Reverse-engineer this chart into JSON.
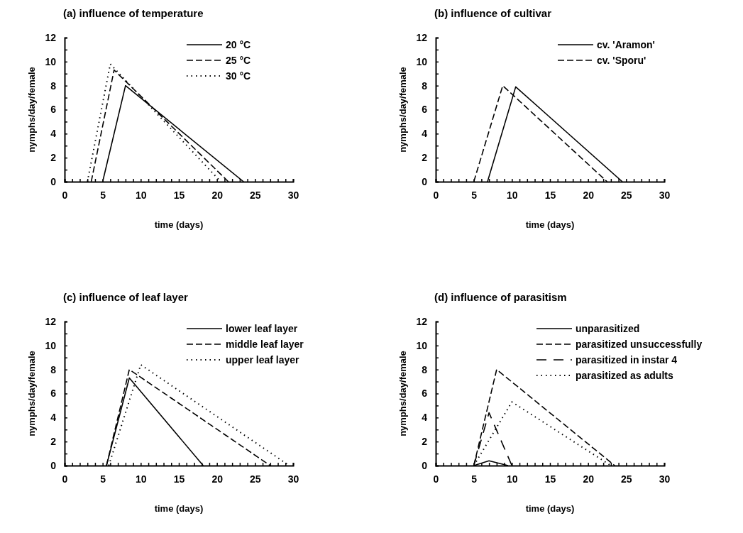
{
  "chart_data": [
    {
      "type": "line",
      "title": "(a) influence of temperature",
      "xlabel": "time (days)",
      "ylabel": "nymphs/day/female",
      "xlim": [
        0,
        30
      ],
      "ylim": [
        0,
        12
      ],
      "xticks": [
        0,
        {
          "value": 1,
          "label": null
        },
        {
          "value": 2,
          "label": null
        },
        {
          "value": 3,
          "label": null
        },
        {
          "value": 4,
          "label": null
        },
        5,
        {
          "value": 6,
          "label": null
        },
        {
          "value": 7,
          "label": null
        },
        {
          "value": 8,
          "label": null
        },
        {
          "value": 9,
          "label": null
        },
        10,
        {
          "value": 11,
          "label": null
        },
        {
          "value": 12,
          "label": null
        },
        {
          "value": 13,
          "label": null
        },
        {
          "value": 14,
          "label": null
        },
        15,
        {
          "value": 16,
          "label": null
        },
        {
          "value": 17,
          "label": null
        },
        {
          "value": 18,
          "label": null
        },
        {
          "value": 19,
          "label": null
        },
        20,
        {
          "value": 21,
          "label": null
        },
        {
          "value": 22,
          "label": null
        },
        {
          "value": 23,
          "label": null
        },
        {
          "value": 24,
          "label": null
        },
        25,
        {
          "value": 26,
          "label": null
        },
        {
          "value": 27,
          "label": null
        },
        {
          "value": 28,
          "label": null
        },
        {
          "value": 29,
          "label": null
        },
        30
      ],
      "yticks": [
        0,
        {
          "value": 1,
          "label": null
        },
        2,
        {
          "value": 3,
          "label": null
        },
        4,
        {
          "value": 5,
          "label": null
        },
        6,
        {
          "value": 7,
          "label": null
        },
        8,
        {
          "value": 9,
          "label": null
        },
        10,
        {
          "value": 11,
          "label": null
        },
        12
      ],
      "legend": "top right",
      "grid": false,
      "marker": "none",
      "series": [
        {
          "name": "20 °C",
          "color": "#000000",
          "line_style": "solid",
          "x": [
            5,
            8,
            23.5
          ],
          "values": [
            0,
            8,
            0
          ]
        },
        {
          "name": "25 °C",
          "color": "#000000",
          "line_style": "dashed",
          "x": [
            3.5,
            6.5,
            21.5
          ],
          "values": [
            0,
            9.3,
            0
          ]
        },
        {
          "name": "30 °C",
          "color": "#000000",
          "line_style": "dotted",
          "x": [
            3,
            6,
            20.5
          ],
          "values": [
            0,
            9.8,
            0
          ]
        }
      ]
    },
    {
      "type": "line",
      "title": "(b) influence of cultivar",
      "xlabel": "time (days)",
      "ylabel": "nymphs/day/female",
      "xlim": [
        0,
        30
      ],
      "ylim": [
        0,
        12
      ],
      "xticks": [
        0,
        {
          "value": 1,
          "label": null
        },
        {
          "value": 2,
          "label": null
        },
        {
          "value": 3,
          "label": null
        },
        {
          "value": 4,
          "label": null
        },
        5,
        {
          "value": 6,
          "label": null
        },
        {
          "value": 7,
          "label": null
        },
        {
          "value": 8,
          "label": null
        },
        {
          "value": 9,
          "label": null
        },
        10,
        {
          "value": 11,
          "label": null
        },
        {
          "value": 12,
          "label": null
        },
        {
          "value": 13,
          "label": null
        },
        {
          "value": 14,
          "label": null
        },
        15,
        {
          "value": 16,
          "label": null
        },
        {
          "value": 17,
          "label": null
        },
        {
          "value": 18,
          "label": null
        },
        {
          "value": 19,
          "label": null
        },
        20,
        {
          "value": 21,
          "label": null
        },
        {
          "value": 22,
          "label": null
        },
        {
          "value": 23,
          "label": null
        },
        {
          "value": 24,
          "label": null
        },
        25,
        {
          "value": 26,
          "label": null
        },
        {
          "value": 27,
          "label": null
        },
        {
          "value": 28,
          "label": null
        },
        {
          "value": 29,
          "label": null
        },
        30
      ],
      "yticks": [
        0,
        {
          "value": 1,
          "label": null
        },
        2,
        {
          "value": 3,
          "label": null
        },
        4,
        {
          "value": 5,
          "label": null
        },
        6,
        {
          "value": 7,
          "label": null
        },
        8,
        {
          "value": 9,
          "label": null
        },
        10,
        {
          "value": 11,
          "label": null
        },
        12
      ],
      "legend": "top right",
      "grid": false,
      "marker": "none",
      "series": [
        {
          "name": "cv. 'Aramon'",
          "color": "#000000",
          "line_style": "solid",
          "x": [
            6.8,
            10.5,
            24.5
          ],
          "values": [
            0,
            7.9,
            0
          ]
        },
        {
          "name": "cv. 'Sporu'",
          "color": "#000000",
          "line_style": "dashed",
          "x": [
            5,
            8.8,
            22.5
          ],
          "values": [
            0,
            8,
            0
          ]
        }
      ]
    },
    {
      "type": "line",
      "title": "(c) influence of leaf layer",
      "xlabel": "time (days)",
      "ylabel": "nymphs/day/female",
      "xlim": [
        0,
        30
      ],
      "ylim": [
        0,
        12
      ],
      "xticks": [
        0,
        {
          "value": 1,
          "label": null
        },
        {
          "value": 2,
          "label": null
        },
        {
          "value": 3,
          "label": null
        },
        {
          "value": 4,
          "label": null
        },
        5,
        {
          "value": 6,
          "label": null
        },
        {
          "value": 7,
          "label": null
        },
        {
          "value": 8,
          "label": null
        },
        {
          "value": 9,
          "label": null
        },
        10,
        {
          "value": 11,
          "label": null
        },
        {
          "value": 12,
          "label": null
        },
        {
          "value": 13,
          "label": null
        },
        {
          "value": 14,
          "label": null
        },
        15,
        {
          "value": 16,
          "label": null
        },
        {
          "value": 17,
          "label": null
        },
        {
          "value": 18,
          "label": null
        },
        {
          "value": 19,
          "label": null
        },
        20,
        {
          "value": 21,
          "label": null
        },
        {
          "value": 22,
          "label": null
        },
        {
          "value": 23,
          "label": null
        },
        {
          "value": 24,
          "label": null
        },
        25,
        {
          "value": 26,
          "label": null
        },
        {
          "value": 27,
          "label": null
        },
        {
          "value": 28,
          "label": null
        },
        {
          "value": 29,
          "label": null
        },
        30
      ],
      "yticks": [
        0,
        {
          "value": 1,
          "label": null
        },
        2,
        {
          "value": 3,
          "label": null
        },
        4,
        {
          "value": 5,
          "label": null
        },
        6,
        {
          "value": 7,
          "label": null
        },
        8,
        {
          "value": 9,
          "label": null
        },
        10,
        {
          "value": 11,
          "label": null
        },
        12
      ],
      "legend": "top right",
      "grid": false,
      "marker": "none",
      "series": [
        {
          "name": "lower leaf layer",
          "color": "#000000",
          "line_style": "solid",
          "x": [
            5.5,
            8.5,
            18.2
          ],
          "values": [
            0,
            7.3,
            0
          ]
        },
        {
          "name": "middle leaf layer",
          "color": "#000000",
          "line_style": "dashed",
          "x": [
            5.5,
            8.5,
            27
          ],
          "values": [
            0,
            8,
            0
          ]
        },
        {
          "name": "upper leaf layer",
          "color": "#000000",
          "line_style": "dotted",
          "x": [
            5.8,
            10,
            29.5
          ],
          "values": [
            0,
            8.4,
            0
          ]
        }
      ]
    },
    {
      "type": "line",
      "title": "(d) influence of parasitism",
      "xlabel": "time (days)",
      "ylabel": "nymphs/day/female",
      "xlim": [
        0,
        30
      ],
      "ylim": [
        0,
        12
      ],
      "xticks": [
        0,
        {
          "value": 1,
          "label": null
        },
        {
          "value": 2,
          "label": null
        },
        {
          "value": 3,
          "label": null
        },
        {
          "value": 4,
          "label": null
        },
        5,
        {
          "value": 6,
          "label": null
        },
        {
          "value": 7,
          "label": null
        },
        {
          "value": 8,
          "label": null
        },
        {
          "value": 9,
          "label": null
        },
        10,
        {
          "value": 11,
          "label": null
        },
        {
          "value": 12,
          "label": null
        },
        {
          "value": 13,
          "label": null
        },
        {
          "value": 14,
          "label": null
        },
        15,
        {
          "value": 16,
          "label": null
        },
        {
          "value": 17,
          "label": null
        },
        {
          "value": 18,
          "label": null
        },
        {
          "value": 19,
          "label": null
        },
        20,
        {
          "value": 21,
          "label": null
        },
        {
          "value": 22,
          "label": null
        },
        {
          "value": 23,
          "label": null
        },
        {
          "value": 24,
          "label": null
        },
        25,
        {
          "value": 26,
          "label": null
        },
        {
          "value": 27,
          "label": null
        },
        {
          "value": 28,
          "label": null
        },
        {
          "value": 29,
          "label": null
        },
        30
      ],
      "yticks": [
        0,
        {
          "value": 1,
          "label": null
        },
        2,
        {
          "value": 3,
          "label": null
        },
        4,
        {
          "value": 5,
          "label": null
        },
        6,
        {
          "value": 7,
          "label": null
        },
        8,
        {
          "value": 9,
          "label": null
        },
        10,
        {
          "value": 11,
          "label": null
        },
        12
      ],
      "legend": "top right",
      "grid": false,
      "marker": "none",
      "series": [
        {
          "name": "unparasitized",
          "color": "#000000",
          "line_style": "solid",
          "x": [
            5,
            7,
            9.5
          ],
          "values": [
            0,
            0.4,
            0
          ]
        },
        {
          "name": "parasitized unsuccessfully",
          "color": "#000000",
          "line_style": "dashed",
          "x": [
            5,
            8,
            23.5
          ],
          "values": [
            0,
            8,
            0
          ]
        },
        {
          "name": "parasitized in instar 4",
          "color": "#000000",
          "line_style": "longdash",
          "x": [
            5,
            7,
            10
          ],
          "values": [
            0,
            4.4,
            0
          ]
        },
        {
          "name": "parasitized as adults",
          "color": "#000000",
          "line_style": "dotted",
          "x": [
            5,
            10,
            23
          ],
          "values": [
            0,
            5.3,
            0
          ]
        }
      ]
    }
  ]
}
